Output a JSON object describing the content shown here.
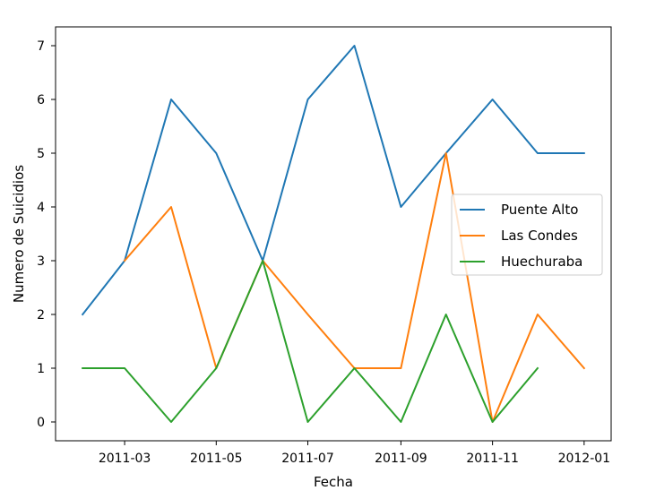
{
  "chart_data": {
    "type": "line",
    "title": "",
    "xlabel": "Fecha",
    "ylabel": "Numero de Suicidios",
    "x": [
      "2011-02-01",
      "2011-03-01",
      "2011-04-01",
      "2011-05-01",
      "2011-06-01",
      "2011-07-01",
      "2011-08-01",
      "2011-09-01",
      "2011-10-01",
      "2011-11-01",
      "2011-12-01",
      "2012-01-01"
    ],
    "xlim": [
      "2011-01-14",
      "2012-01-19"
    ],
    "ylim": [
      -0.35,
      7.35
    ],
    "x_ticks": [
      {
        "date": "2011-03-01",
        "label": "2011-03"
      },
      {
        "date": "2011-05-01",
        "label": "2011-05"
      },
      {
        "date": "2011-07-01",
        "label": "2011-07"
      },
      {
        "date": "2011-09-01",
        "label": "2011-09"
      },
      {
        "date": "2011-11-01",
        "label": "2011-11"
      },
      {
        "date": "2012-01-01",
        "label": "2012-01"
      }
    ],
    "y_ticks": [
      0,
      1,
      2,
      3,
      4,
      5,
      6,
      7
    ],
    "grid": false,
    "legend": "center-right",
    "series": [
      {
        "name": "Puente Alto",
        "color": "#1f77b4",
        "values": [
          2,
          3,
          6,
          5,
          3,
          6,
          7,
          4,
          5,
          6,
          5,
          5
        ]
      },
      {
        "name": "Las Condes",
        "color": "#ff7f0e",
        "values": [
          null,
          3,
          4,
          1,
          3,
          2,
          1,
          1,
          5,
          0,
          2,
          1
        ]
      },
      {
        "name": "Huechuraba",
        "color": "#2ca02c",
        "values": [
          1,
          1,
          0,
          1,
          3,
          0,
          1,
          0,
          2,
          0,
          1,
          null
        ]
      }
    ]
  }
}
